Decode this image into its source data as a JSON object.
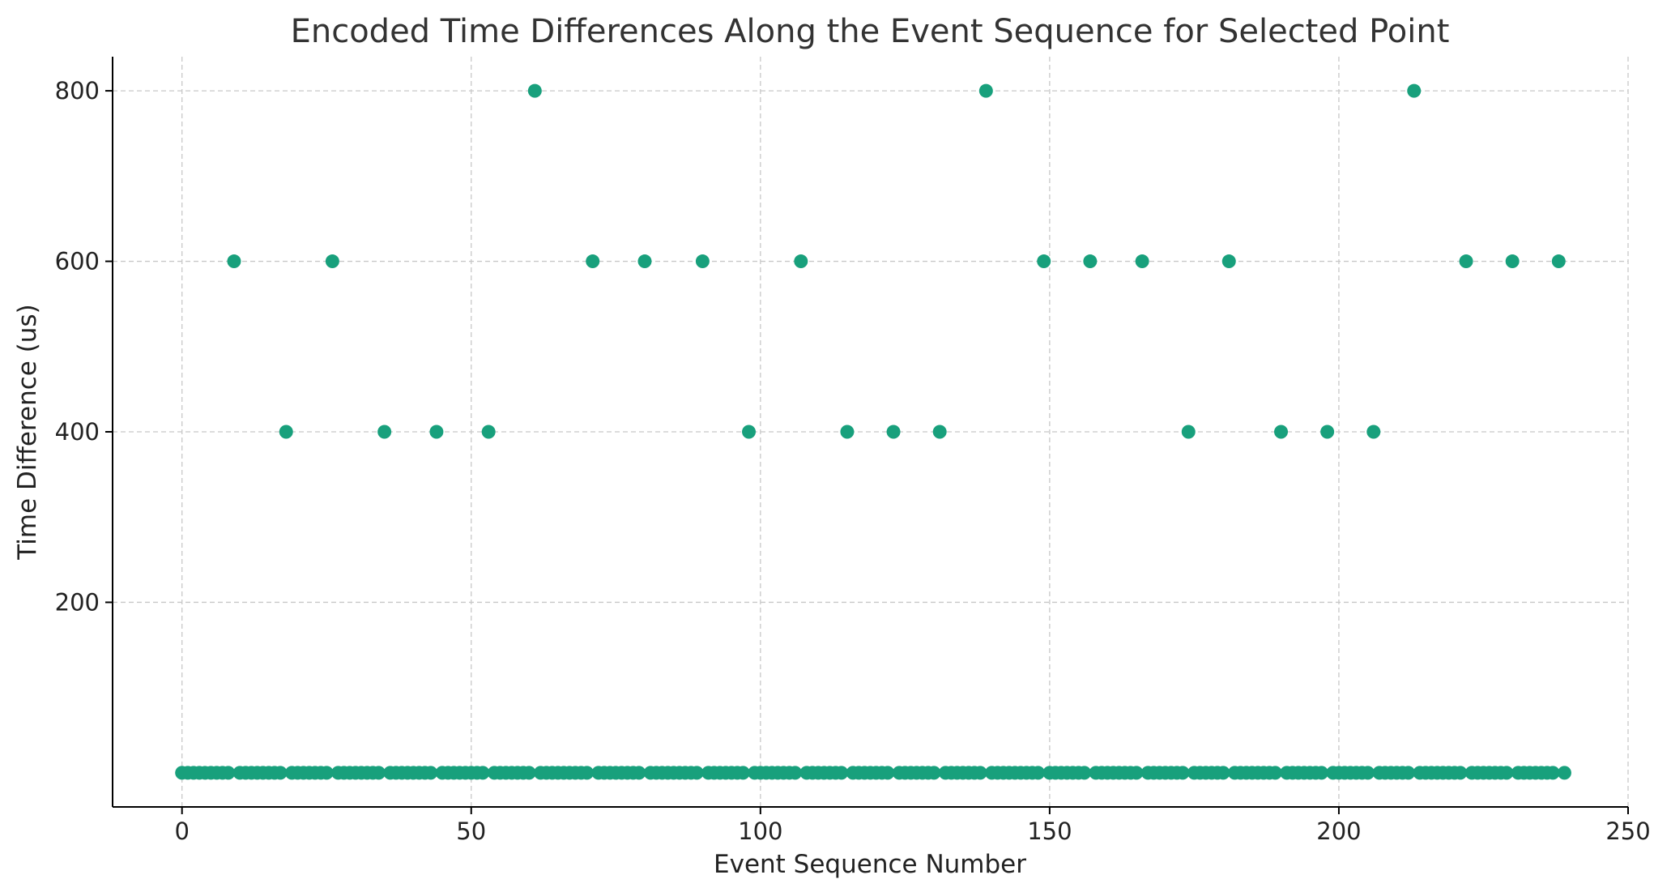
{
  "chart_data": {
    "type": "scatter",
    "title": "Encoded Time Differences Along the Event Sequence for Selected Point",
    "xlabel": "Event Sequence Number",
    "ylabel": "Time Difference (us)",
    "xlim": [
      -12,
      250
    ],
    "ylim": [
      -40,
      840
    ],
    "xticks": [
      0,
      50,
      100,
      150,
      200,
      250
    ],
    "yticks": [
      200,
      400,
      600,
      800
    ],
    "grid": true,
    "color": "#18a07c",
    "x_range": [
      0,
      239
    ],
    "baseline_value": 0,
    "points": [
      {
        "x": 9,
        "y": 600
      },
      {
        "x": 18,
        "y": 400
      },
      {
        "x": 26,
        "y": 600
      },
      {
        "x": 35,
        "y": 400
      },
      {
        "x": 44,
        "y": 400
      },
      {
        "x": 53,
        "y": 400
      },
      {
        "x": 61,
        "y": 800
      },
      {
        "x": 71,
        "y": 600
      },
      {
        "x": 80,
        "y": 600
      },
      {
        "x": 90,
        "y": 600
      },
      {
        "x": 98,
        "y": 400
      },
      {
        "x": 107,
        "y": 600
      },
      {
        "x": 115,
        "y": 400
      },
      {
        "x": 123,
        "y": 400
      },
      {
        "x": 131,
        "y": 400
      },
      {
        "x": 139,
        "y": 800
      },
      {
        "x": 149,
        "y": 600
      },
      {
        "x": 157,
        "y": 600
      },
      {
        "x": 166,
        "y": 600
      },
      {
        "x": 174,
        "y": 400
      },
      {
        "x": 181,
        "y": 600
      },
      {
        "x": 190,
        "y": 400
      },
      {
        "x": 198,
        "y": 400
      },
      {
        "x": 206,
        "y": 400
      },
      {
        "x": 213,
        "y": 800
      },
      {
        "x": 222,
        "y": 600
      },
      {
        "x": 230,
        "y": 600
      },
      {
        "x": 238,
        "y": 600
      }
    ]
  }
}
